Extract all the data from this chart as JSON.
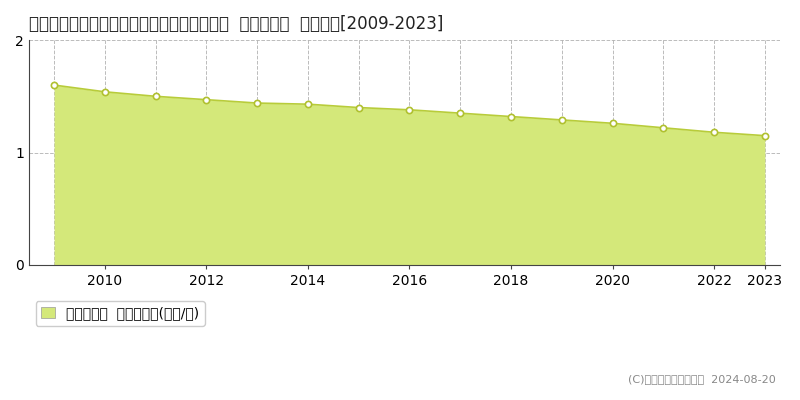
{
  "title": "愛知県北設楽郡豊根村富山字大谷下２９番３  基準地価格  地価推移[2009-2023]",
  "years": [
    2009,
    2010,
    2011,
    2012,
    2013,
    2014,
    2015,
    2016,
    2017,
    2018,
    2019,
    2020,
    2021,
    2022,
    2023
  ],
  "values": [
    1.6,
    1.54,
    1.5,
    1.47,
    1.44,
    1.43,
    1.4,
    1.38,
    1.35,
    1.32,
    1.29,
    1.26,
    1.22,
    1.18,
    1.15
  ],
  "ylim": [
    0,
    2
  ],
  "yticks": [
    0,
    1,
    2
  ],
  "xticks": [
    2010,
    2012,
    2014,
    2016,
    2018,
    2020,
    2022,
    2023
  ],
  "line_color": "#b8cc3a",
  "fill_color": "#d4e87a",
  "fill_alpha": 1.0,
  "marker_color": "white",
  "marker_edge_color": "#b0c030",
  "grid_color": "#aaaaaa",
  "background_color": "#ffffff",
  "legend_label": "基準地価格  平均坪単価(万円/坪)",
  "copyright_text": "(C)土地価格ドットコム  2024-08-20",
  "title_fontsize": 12,
  "axis_fontsize": 10,
  "legend_fontsize": 10
}
